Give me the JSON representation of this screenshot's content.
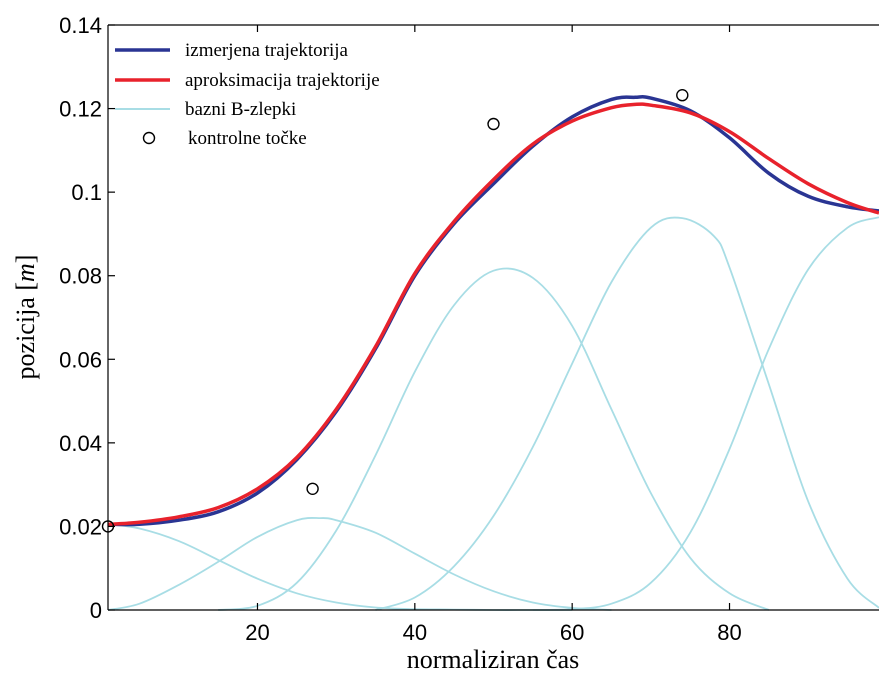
{
  "chart_data": {
    "type": "line",
    "xlabel": "normaliziran čas",
    "ylabel_prefix": "pozicija [",
    "ylabel_unit": "m",
    "ylabel_suffix": "]",
    "xlim": [
      1,
      99
    ],
    "ylim": [
      0,
      0.14
    ],
    "xticks": [
      20,
      40,
      60,
      80
    ],
    "xtick_labels": [
      "20",
      "40",
      "60",
      "80"
    ],
    "yticks": [
      0,
      0.02,
      0.04,
      0.06,
      0.08,
      0.1,
      0.12,
      0.14
    ],
    "ytick_labels": [
      "0",
      "0.02",
      "0.04",
      "0.06",
      "0.08",
      "0.1",
      "0.12",
      "0.14"
    ],
    "grid": false,
    "legend_position": "top-left",
    "series": [
      {
        "name": "izmerjena trajektorija",
        "color": "#2a3593",
        "style": "line",
        "x": [
          1,
          5,
          10,
          15,
          20,
          25,
          30,
          35,
          40,
          45,
          50,
          55,
          60,
          65,
          68,
          70,
          75,
          80,
          85,
          90,
          95,
          99
        ],
        "y": [
          0.0205,
          0.0205,
          0.0215,
          0.0235,
          0.028,
          0.036,
          0.0475,
          0.0625,
          0.08,
          0.0925,
          0.102,
          0.111,
          0.118,
          0.1222,
          0.1227,
          0.1225,
          0.1195,
          0.113,
          0.1045,
          0.099,
          0.0965,
          0.0955
        ]
      },
      {
        "name": "aproksimacija trajektorije",
        "color": "#e8222c",
        "style": "line",
        "x": [
          1,
          5,
          10,
          15,
          20,
          25,
          30,
          35,
          40,
          45,
          50,
          55,
          60,
          65,
          68,
          70,
          75,
          80,
          85,
          90,
          95,
          99
        ],
        "y": [
          0.0205,
          0.021,
          0.0223,
          0.0245,
          0.029,
          0.0365,
          0.048,
          0.063,
          0.0805,
          0.093,
          0.103,
          0.1115,
          0.117,
          0.1202,
          0.121,
          0.1208,
          0.119,
          0.1145,
          0.108,
          0.102,
          0.0975,
          0.095
        ]
      },
      {
        "name": "bazni B-zlepki",
        "color": "#a8dde5",
        "style": "line",
        "curves": [
          {
            "x": [
              1,
              5,
              10,
              15,
              20,
              25,
              30,
              35,
              40,
              45,
              50,
              55,
              60
            ],
            "y": [
              0.0205,
              0.0195,
              0.0165,
              0.012,
              0.0075,
              0.004,
              0.0018,
              0.0006,
              0.0002,
              0.0001,
              0.0,
              0.0,
              0.0
            ]
          },
          {
            "x": [
              1,
              5,
              10,
              15,
              20,
              25,
              28,
              30,
              35,
              40,
              45,
              50,
              55,
              60,
              65
            ],
            "y": [
              0.0,
              0.0015,
              0.006,
              0.0115,
              0.0175,
              0.0215,
              0.022,
              0.0215,
              0.0185,
              0.0135,
              0.0085,
              0.0045,
              0.0018,
              0.0005,
              0.0
            ]
          },
          {
            "x": [
              15,
              20,
              25,
              30,
              35,
              40,
              45,
              50,
              55,
              60,
              65,
              70,
              75,
              80,
              85
            ],
            "y": [
              0.0,
              0.001,
              0.0065,
              0.019,
              0.037,
              0.057,
              0.073,
              0.0812,
              0.0795,
              0.068,
              0.048,
              0.028,
              0.0125,
              0.004,
              0.0
            ]
          },
          {
            "x": [
              35,
              40,
              45,
              50,
              55,
              60,
              65,
              70,
              74,
              78,
              80,
              85,
              90,
              95,
              99
            ],
            "y": [
              0.0,
              0.003,
              0.0105,
              0.0225,
              0.039,
              0.059,
              0.0785,
              0.0915,
              0.0938,
              0.0895,
              0.082,
              0.054,
              0.026,
              0.0075,
              0.0005
            ]
          },
          {
            "x": [
              55,
              60,
              65,
              70,
              75,
              80,
              85,
              90,
              95,
              99
            ],
            "y": [
              0.0,
              0.0002,
              0.0015,
              0.0065,
              0.0185,
              0.0385,
              0.0625,
              0.0815,
              0.0915,
              0.094
            ]
          }
        ]
      },
      {
        "name": "kontrolne točke",
        "color": "#000000",
        "style": "marker",
        "x": [
          1,
          27,
          50,
          74
        ],
        "y": [
          0.02,
          0.029,
          0.1163,
          0.1232
        ]
      }
    ]
  }
}
